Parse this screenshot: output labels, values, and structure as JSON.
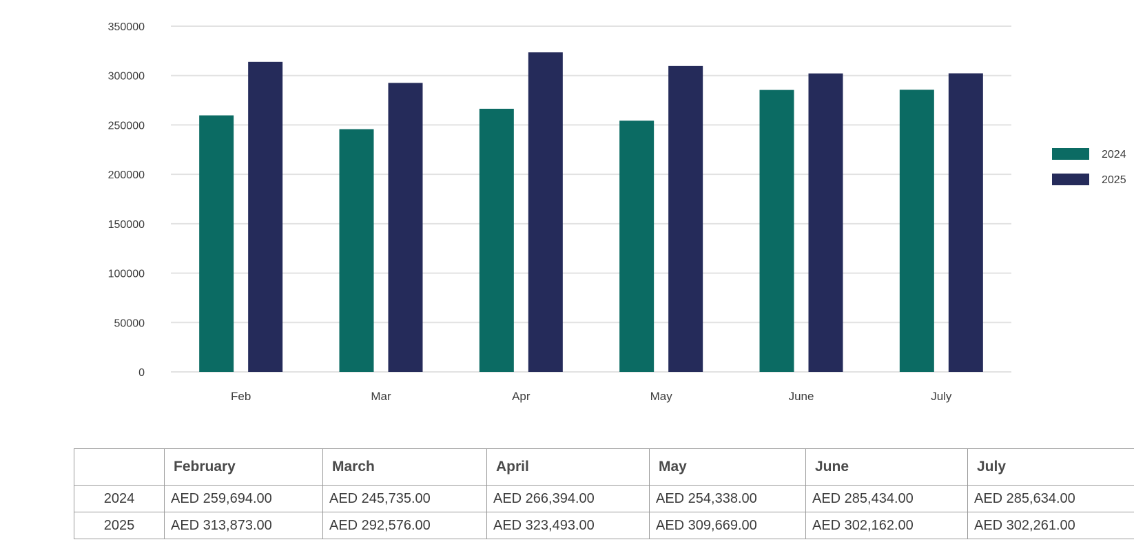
{
  "chart_data": {
    "type": "bar",
    "categories": [
      "Feb",
      "Mar",
      "Apr",
      "May",
      "June",
      "July"
    ],
    "series": [
      {
        "name": "2024",
        "color": "#0b6b63",
        "values": [
          259694,
          245735,
          266394,
          254338,
          285434,
          285634
        ]
      },
      {
        "name": "2025",
        "color": "#252b5a",
        "values": [
          313873,
          292576,
          323493,
          309669,
          302162,
          302261
        ]
      }
    ],
    "ylim": [
      0,
      350000
    ],
    "yticks": [
      0,
      50000,
      100000,
      150000,
      200000,
      250000,
      300000,
      350000
    ],
    "grid": true,
    "legend_position": "right",
    "title": "",
    "xlabel": "",
    "ylabel": ""
  },
  "table": {
    "headers": [
      "",
      "February",
      "March",
      "April",
      "May",
      "June",
      "July"
    ],
    "rows": [
      {
        "label": "2024",
        "cells": [
          "AED 259,694.00",
          "AED 245,735.00",
          "AED 266,394.00",
          "AED 254,338.00",
          "AED 285,434.00",
          "AED 285,634.00"
        ]
      },
      {
        "label": "2025",
        "cells": [
          "AED 313,873.00",
          "AED 292,576.00",
          "AED 323,493.00",
          "AED 309,669.00",
          "AED 302,162.00",
          "AED 302,261.00"
        ]
      }
    ]
  }
}
